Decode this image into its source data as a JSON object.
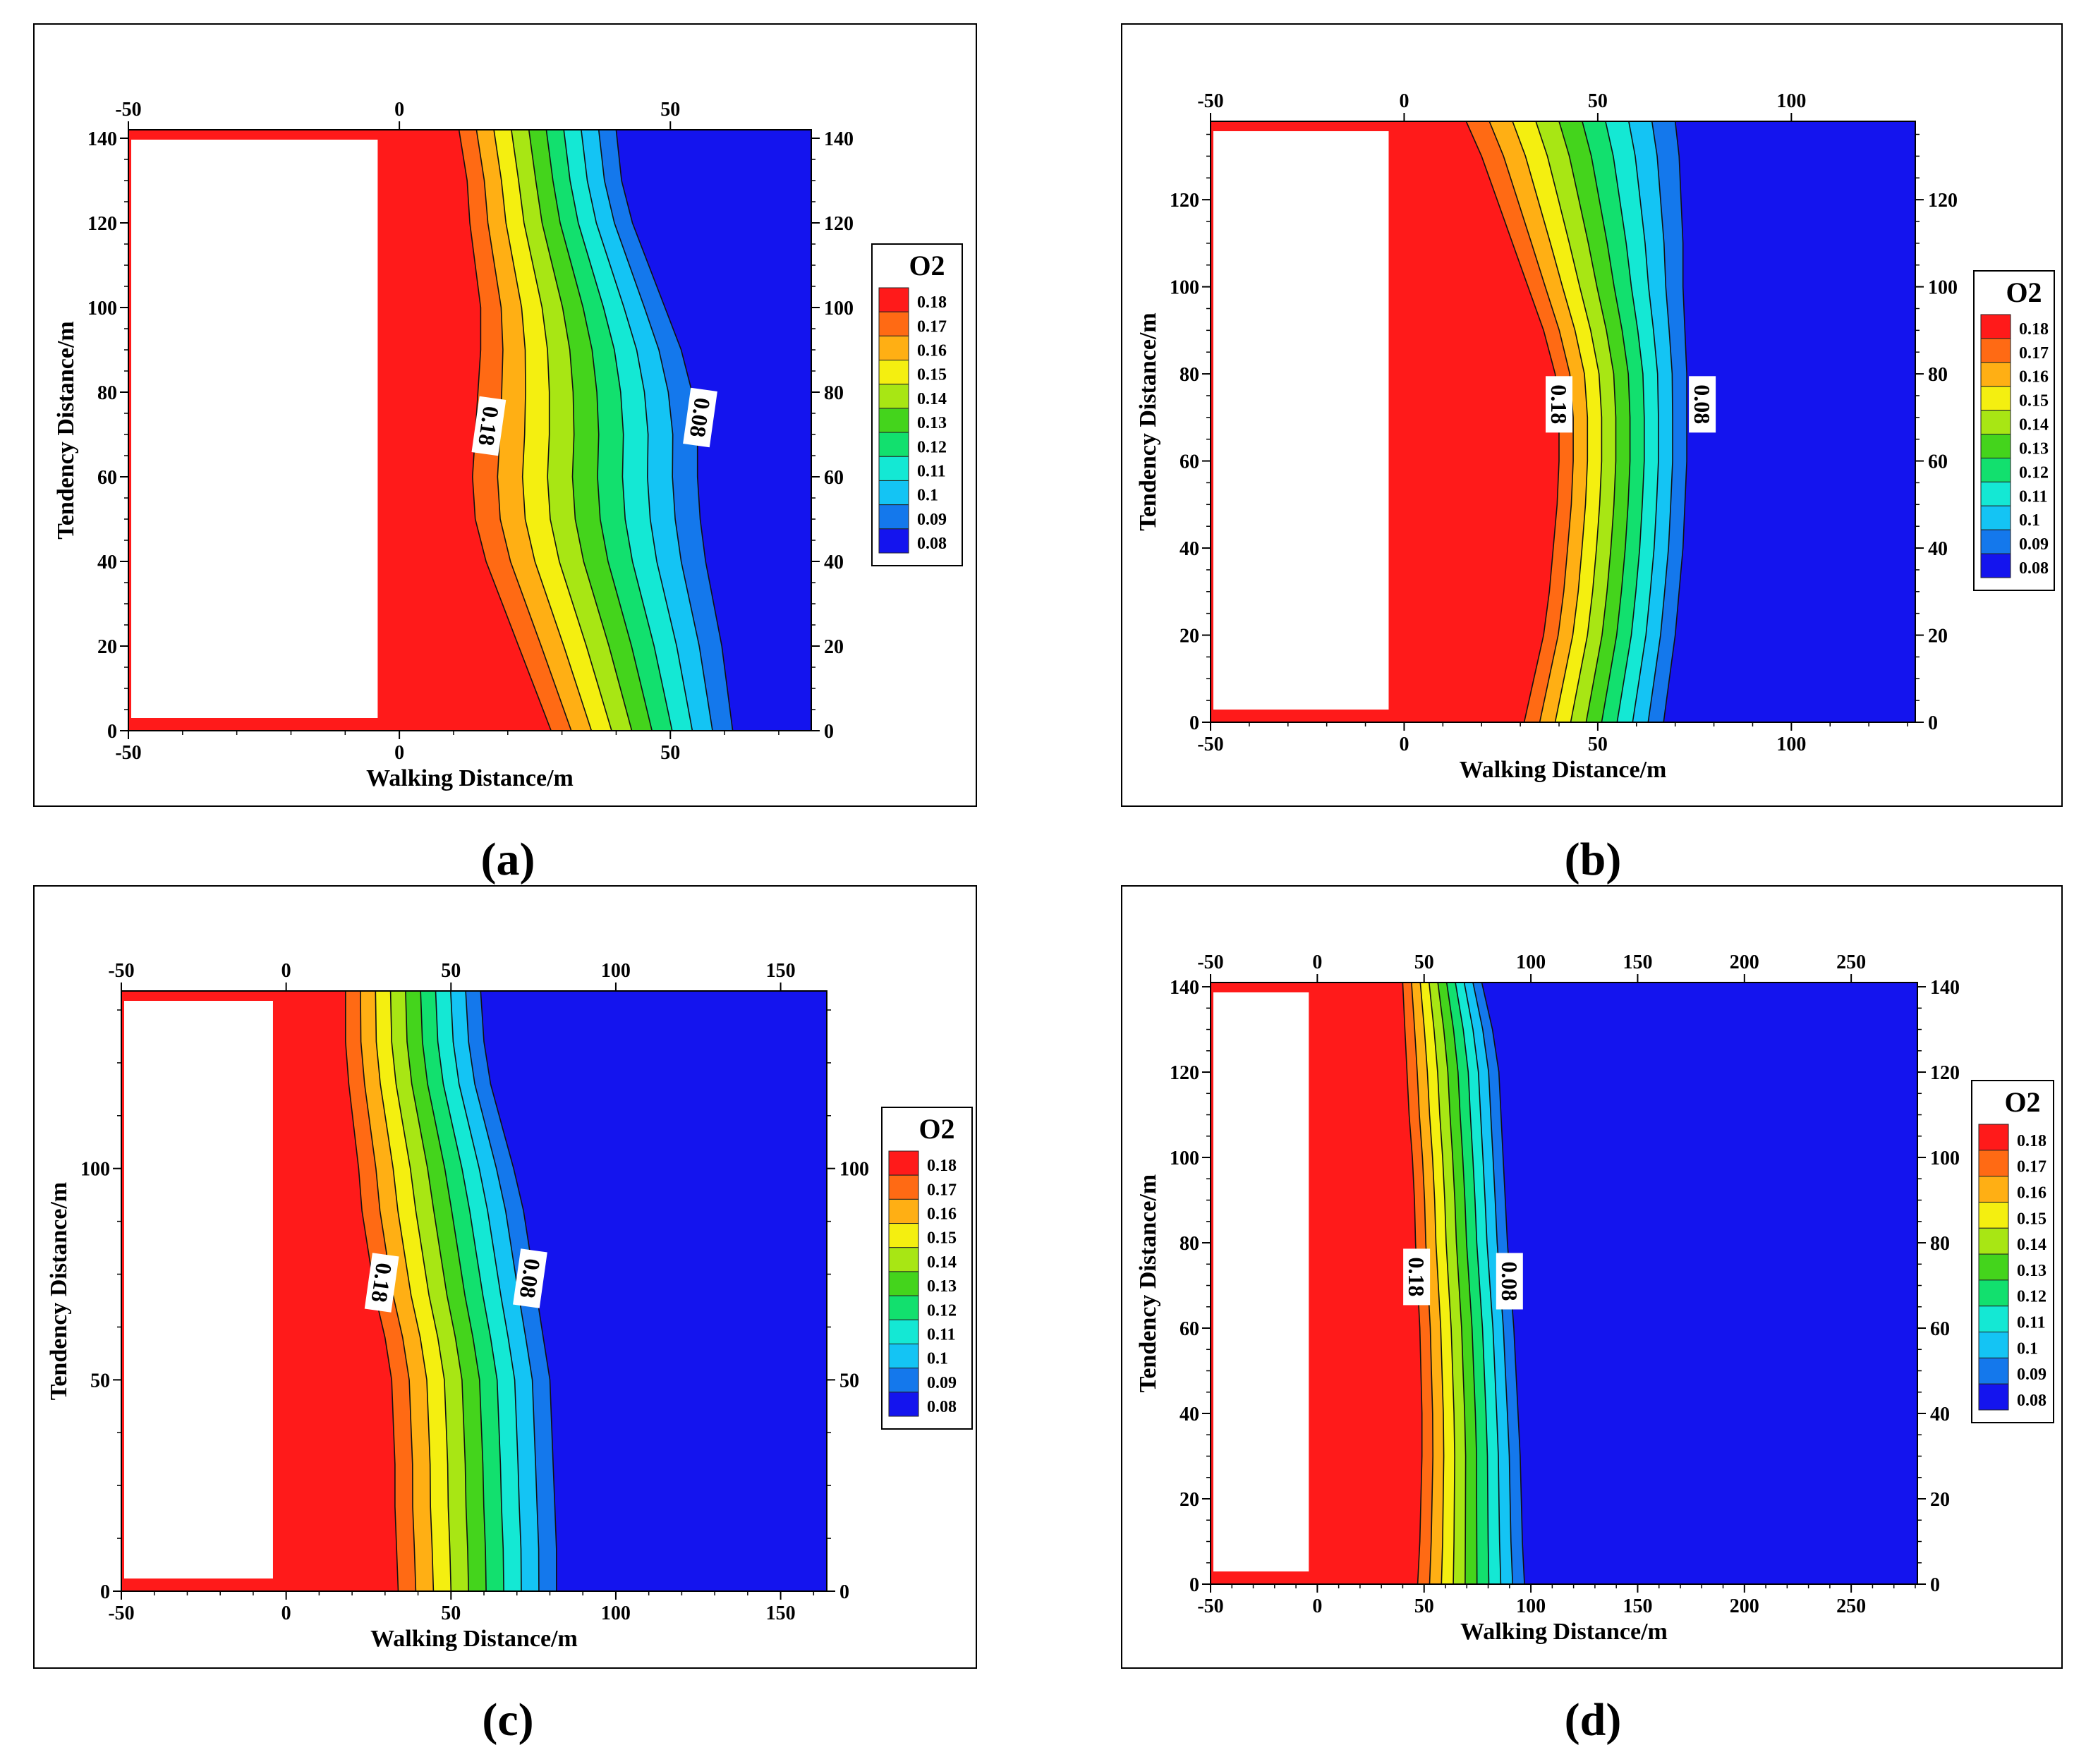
{
  "legend_title": "O2",
  "levels": [
    {
      "label": "0.18",
      "color": "#ff1a1a"
    },
    {
      "label": "0.17",
      "color": "#ff6a14"
    },
    {
      "label": "0.16",
      "color": "#ffaf14"
    },
    {
      "label": "0.15",
      "color": "#f4ef10"
    },
    {
      "label": "0.14",
      "color": "#a8e614"
    },
    {
      "label": "0.13",
      "color": "#44d41c"
    },
    {
      "label": "0.12",
      "color": "#12e06e"
    },
    {
      "label": "0.11",
      "color": "#14e8d4"
    },
    {
      "label": "0.1",
      "color": "#14c4f4"
    },
    {
      "label": "0.09",
      "color": "#1478ec"
    },
    {
      "label": "0.08",
      "color": "#1414ee"
    }
  ],
  "chart_data": [
    {
      "type": "contour",
      "caption": "(a)",
      "xlabel": "Walking Distance/m",
      "ylabel": "Tendency Distance/m",
      "xlim": [
        -50,
        76
      ],
      "ylim": [
        0,
        142
      ],
      "xticks": [
        -50,
        0,
        50
      ],
      "yticks": [
        0,
        20,
        40,
        60,
        80,
        100,
        120,
        140
      ],
      "contour_labels": [
        {
          "text": "0.18",
          "x": 16.5,
          "y": 72
        },
        {
          "text": "0.08",
          "x": 55.5,
          "y": 74
        }
      ],
      "isolines": {
        "y": [
          0,
          10,
          20,
          30,
          40,
          50,
          60,
          70,
          80,
          90,
          100,
          110,
          120,
          130,
          142
        ],
        "x_first": [
          28,
          25,
          22,
          19,
          16,
          14,
          13.5,
          14,
          14.5,
          15,
          15,
          14,
          13,
          12.5,
          11
        ],
        "x_last": [
          61.5,
          60.5,
          59.5,
          58,
          56.5,
          55.5,
          55,
          55,
          54,
          52,
          49,
          46,
          43,
          41,
          40
        ]
      }
    },
    {
      "type": "contour",
      "caption": "(b)",
      "xlabel": "Walking Distance/m",
      "ylabel": "Tendency Distance/m",
      "xlim": [
        -50,
        132
      ],
      "ylim": [
        0,
        138
      ],
      "xticks": [
        -50,
        0,
        50,
        100
      ],
      "yticks": [
        0,
        20,
        40,
        60,
        80,
        100,
        120
      ],
      "contour_labels": [
        {
          "text": "0.18",
          "x": 40,
          "y": 73
        },
        {
          "text": "0.08",
          "x": 77,
          "y": 73
        }
      ],
      "isolines": {
        "y": [
          0,
          10,
          20,
          30,
          40,
          50,
          60,
          70,
          80,
          90,
          100,
          110,
          120,
          130,
          138
        ],
        "x_first": [
          31,
          33.5,
          36,
          37.5,
          38.5,
          39.5,
          40,
          40,
          39,
          36,
          32,
          28,
          24,
          20,
          16
        ],
        "x_last": [
          67,
          68.5,
          70,
          71,
          72,
          72.5,
          73,
          73,
          73,
          72.5,
          72,
          72,
          71.5,
          71,
          70
        ]
      }
    },
    {
      "type": "contour",
      "caption": "(c)",
      "xlabel": "Walking Distance/m",
      "ylabel": "Tendency Distance/m",
      "xlim": [
        -50,
        164
      ],
      "ylim": [
        0,
        142
      ],
      "xticks": [
        -50,
        0,
        50,
        100,
        150
      ],
      "yticks": [
        0,
        50,
        100
      ],
      "contour_labels": [
        {
          "text": "0.18",
          "x": 29,
          "y": 73
        },
        {
          "text": "0.08",
          "x": 74,
          "y": 74
        }
      ],
      "isolines": {
        "y": [
          0,
          10,
          20,
          30,
          40,
          50,
          60,
          70,
          80,
          90,
          100,
          110,
          120,
          130,
          142
        ],
        "x_first": [
          34,
          33.5,
          33,
          33,
          32.5,
          32,
          30,
          27,
          25,
          23,
          22,
          20.5,
          19,
          18,
          18
        ],
        "x_last": [
          82,
          82,
          81.5,
          81,
          80.5,
          80,
          78,
          76,
          74,
          72,
          69,
          65.5,
          62,
          60,
          59
        ]
      }
    },
    {
      "type": "contour",
      "caption": "(d)",
      "xlabel": "Walking Distance/m",
      "ylabel": "Tendency Distance/m",
      "xlim": [
        -50,
        281
      ],
      "ylim": [
        0,
        141
      ],
      "xticks": [
        -50,
        0,
        50,
        100,
        150,
        200,
        250
      ],
      "yticks": [
        0,
        20,
        40,
        60,
        80,
        100,
        120,
        140
      ],
      "contour_labels": [
        {
          "text": "0.18",
          "x": 46.5,
          "y": 72
        },
        {
          "text": "0.08",
          "x": 90,
          "y": 71
        }
      ],
      "isolines": {
        "y": [
          0,
          10,
          20,
          30,
          40,
          50,
          60,
          70,
          80,
          90,
          100,
          110,
          120,
          130,
          141
        ],
        "x_first": [
          47,
          48,
          48.5,
          49,
          49,
          48.5,
          48,
          47,
          46,
          45.5,
          44.5,
          43,
          42,
          41,
          40
        ],
        "x_last": [
          97,
          96,
          95.5,
          95,
          94,
          93,
          92,
          90.5,
          89,
          88,
          87,
          86,
          85,
          82,
          77
        ]
      }
    }
  ]
}
